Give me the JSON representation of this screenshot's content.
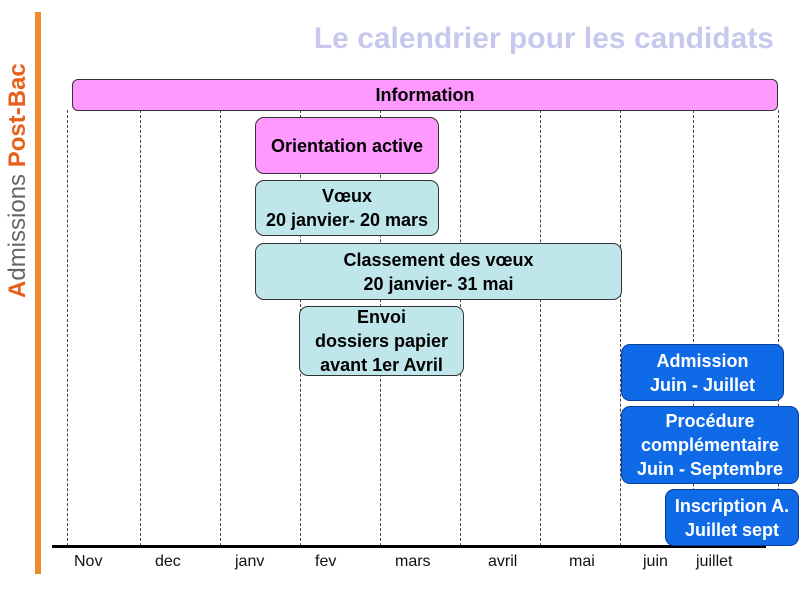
{
  "sidebar": {
    "initial": "A",
    "rest": "dmissions ",
    "post_bac": "Post-Bac"
  },
  "title": "Le calendrier pour les candidats",
  "months": [
    "Nov",
    "dec",
    "janv",
    "fev",
    "mars",
    "avril",
    "mai",
    "juin",
    "juillet"
  ],
  "bars": [
    {
      "id": "information",
      "text": "Information",
      "style": "pink"
    },
    {
      "id": "orientation",
      "text": "Orientation active",
      "style": "pink"
    },
    {
      "id": "voeux",
      "text": "Vœux\n20 janvier- 20 mars",
      "style": "cyan"
    },
    {
      "id": "classement",
      "text": "Classement des vœux\n20 janvier- 31 mai",
      "style": "cyan"
    },
    {
      "id": "envoi",
      "text": "Envoi\ndossiers papier\navant 1er Avril",
      "style": "cyan"
    },
    {
      "id": "admission",
      "text": "Admission\nJuin - Juillet",
      "style": "blue"
    },
    {
      "id": "procedure",
      "text": "Procédure\ncomplémentaire\nJuin - Septembre",
      "style": "blue"
    },
    {
      "id": "inscription",
      "text": "Inscription A.\nJuillet sept",
      "style": "blue"
    }
  ],
  "colors": {
    "accent": "#f08a2c",
    "pink": "#ff99ff",
    "cyan": "#bfe6ea",
    "blue": "#0f6ae8"
  }
}
